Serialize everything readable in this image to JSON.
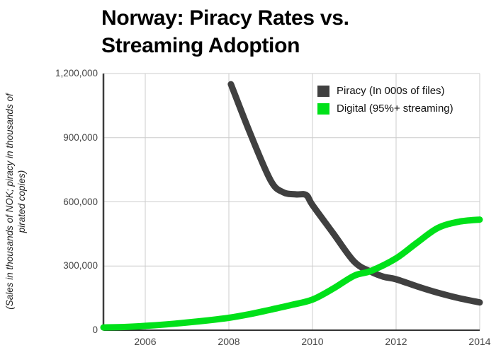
{
  "title": {
    "lines": [
      "Norway: Piracy Rates vs.",
      "Streaming Adoption"
    ],
    "text": "Norway: Piracy Rates vs. Streaming Adoption"
  },
  "colors": {
    "piracy": "#404040",
    "digital": "#00E119",
    "grid": "#cccccc",
    "axis_bottom": "#333333",
    "axis_left": "#3c3c3c",
    "tick_text": "#444444",
    "legend_text": "#111111",
    "background": "#ffffff"
  },
  "legend": {
    "items": [
      {
        "label": "Piracy (In 000s of files)",
        "color": "#404040"
      },
      {
        "label": "Digital (95%+ streaming)",
        "color": "#00E119"
      }
    ]
  },
  "chart_data": {
    "type": "line",
    "title": "Norway: Piracy Rates vs. Streaming Adoption",
    "xlabel": "",
    "ylabel": "(Sales in thousands of NOK; piracy in thousands of pirated copies)",
    "ylabel_lines": [
      "(Sales in thousands of NOK; piracy in thousands of",
      "pirated copies)"
    ],
    "xlim": [
      2005,
      2014
    ],
    "ylim": [
      0,
      1200000
    ],
    "grid": true,
    "legend_position": "top-right",
    "x_ticks": [
      {
        "value": 2006,
        "label": "2006"
      },
      {
        "value": 2008,
        "label": "2008"
      },
      {
        "value": 2010,
        "label": "2010"
      },
      {
        "value": 2012,
        "label": "2012"
      },
      {
        "value": 2014,
        "label": "2014"
      }
    ],
    "y_ticks": [
      {
        "value": 0,
        "label": "0"
      },
      {
        "value": 300000,
        "label": "300,000"
      },
      {
        "value": 600000,
        "label": "600,000"
      },
      {
        "value": 900000,
        "label": "900,000"
      },
      {
        "value": 1200000,
        "label": "1,200,000"
      }
    ],
    "series": [
      {
        "name": "Piracy (In 000s of files)",
        "color": "#404040",
        "x": [
          2008.05,
          2008.5,
          2009,
          2009.3,
          2009.6,
          2009.85,
          2010,
          2010.5,
          2011,
          2011.4,
          2011.7,
          2012,
          2012.5,
          2013,
          2013.5,
          2014
        ],
        "values": [
          1150000,
          925000,
          700000,
          645000,
          635000,
          632000,
          585000,
          452000,
          320000,
          273000,
          250000,
          238000,
          205000,
          175000,
          150000,
          130000
        ]
      },
      {
        "name": "Digital (95%+ streaming)",
        "color": "#00E119",
        "x": [
          2005,
          2005.5,
          2006,
          2006.5,
          2007,
          2007.5,
          2008,
          2008.5,
          2009,
          2009.5,
          2010,
          2010.5,
          2011,
          2011.4,
          2012,
          2012.5,
          2013,
          2013.5,
          2014
        ],
        "values": [
          13000,
          15000,
          20000,
          27000,
          36000,
          46000,
          58000,
          75000,
          96000,
          118000,
          143000,
          195000,
          255000,
          277000,
          336000,
          409000,
          478000,
          507000,
          517000
        ]
      }
    ]
  }
}
